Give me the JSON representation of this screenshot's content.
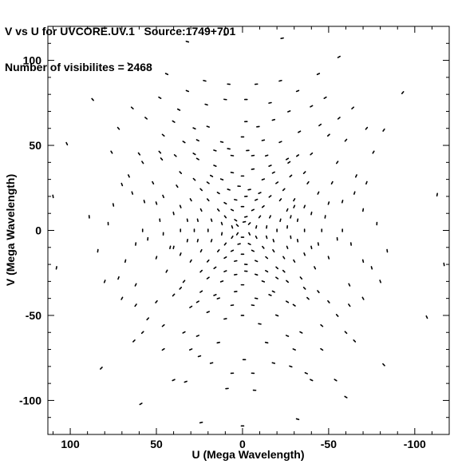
{
  "header": {
    "line1": "V vs U for UVCORE.UV.1   Source:1749+701",
    "line2": "Number of visibilites = 2468"
  },
  "chart_data": {
    "type": "scatter",
    "title": "V vs U for UVCORE.UV.1   Source:1749+701",
    "subtitle": "Number of visibilites = 2468",
    "xlabel": "U (Mega Wavelength)",
    "ylabel": "V (Mega Wavelength)",
    "xlim": [
      113,
      -120
    ],
    "ylim": [
      -120,
      120
    ],
    "x_reversed": true,
    "xticks": [
      100,
      50,
      0,
      -50,
      -100
    ],
    "xtick_labels": [
      "100",
      "50",
      "0",
      "-50",
      "-100"
    ],
    "yticks": [
      100,
      50,
      0,
      -50,
      -100
    ],
    "ytick_labels": [
      "100",
      "50",
      "0",
      "-50",
      "-100"
    ],
    "grid": false,
    "legend": "none",
    "marker_color": "#000000",
    "points": [
      [
        10,
        115
      ],
      [
        -23,
        113
      ],
      [
        32,
        111
      ],
      [
        -56,
        102
      ],
      [
        66,
        98
      ],
      [
        -93,
        81
      ],
      [
        87,
        77
      ],
      [
        -82,
        59
      ],
      [
        -113,
        21
      ],
      [
        102,
        51
      ],
      [
        110,
        20
      ],
      [
        89,
        8
      ],
      [
        -117,
        -20
      ],
      [
        108,
        -22
      ],
      [
        -107,
        -51
      ],
      [
        -82,
        -79
      ],
      [
        59,
        -102
      ],
      [
        -32,
        -111
      ],
      [
        24,
        -113
      ],
      [
        0,
        -115
      ],
      [
        82,
        -81
      ],
      [
        -60,
        -98
      ],
      [
        -54,
        -88
      ],
      [
        -37,
        -84
      ],
      [
        33,
        -89
      ],
      [
        9,
        -93
      ],
      [
        -7,
        -94
      ],
      [
        -1,
        -76
      ],
      [
        -28,
        -80
      ],
      [
        25,
        -74
      ],
      [
        -50,
        56
      ],
      [
        -45,
        62
      ],
      [
        -60,
        53
      ],
      [
        -40,
        73
      ],
      [
        -27,
        70
      ],
      [
        -16,
        75
      ],
      [
        -2,
        77
      ],
      [
        10,
        77
      ],
      [
        21,
        74
      ],
      [
        37,
        71
      ],
      [
        -18,
        65
      ],
      [
        -2,
        64
      ],
      [
        -9,
        61
      ],
      [
        20,
        61
      ],
      [
        28,
        60
      ],
      [
        40,
        64
      ],
      [
        46,
        56
      ],
      [
        -33,
        58
      ],
      [
        -40,
        45
      ],
      [
        -32,
        44
      ],
      [
        -27,
        40
      ],
      [
        -14,
        44
      ],
      [
        -3,
        47
      ],
      [
        8,
        48
      ],
      [
        16,
        47
      ],
      [
        28,
        45
      ],
      [
        39,
        44
      ],
      [
        47,
        42
      ],
      [
        58,
        40
      ],
      [
        -55,
        40
      ],
      [
        -22,
        52
      ],
      [
        -12,
        53
      ],
      [
        0,
        55
      ],
      [
        12,
        52
      ],
      [
        26,
        53
      ],
      [
        34,
        52
      ],
      [
        48,
        46
      ],
      [
        60,
        45
      ],
      [
        -66,
        32
      ],
      [
        -72,
        28
      ],
      [
        -65,
        22
      ],
      [
        -58,
        17
      ],
      [
        -70,
        12
      ],
      [
        66,
        32
      ],
      [
        70,
        27
      ],
      [
        64,
        22
      ],
      [
        57,
        17
      ],
      [
        75,
        15
      ],
      [
        -55,
        -5
      ],
      [
        -63,
        -8
      ],
      [
        -70,
        -18
      ],
      [
        -75,
        -22
      ],
      [
        55,
        -5
      ],
      [
        62,
        -8
      ],
      [
        68,
        -18
      ],
      [
        72,
        -28
      ],
      [
        -50,
        -42
      ],
      [
        -55,
        -50
      ],
      [
        -60,
        -60
      ],
      [
        -65,
        -65
      ],
      [
        50,
        -42
      ],
      [
        55,
        -52
      ],
      [
        58,
        -60
      ],
      [
        63,
        -65
      ],
      [
        -44,
        -36
      ],
      [
        -38,
        -40
      ],
      [
        -30,
        -44
      ],
      [
        -20,
        -50
      ],
      [
        -10,
        -55
      ],
      [
        0,
        -50
      ],
      [
        10,
        -52
      ],
      [
        20,
        -48
      ],
      [
        30,
        -45
      ],
      [
        40,
        -38
      ],
      [
        -42,
        -22
      ],
      [
        -34,
        -28
      ],
      [
        -26,
        -30
      ],
      [
        -18,
        -36
      ],
      [
        -8,
        -40
      ],
      [
        4,
        -36
      ],
      [
        14,
        -40
      ],
      [
        24,
        -36
      ],
      [
        34,
        -30
      ],
      [
        44,
        -24
      ],
      [
        -44,
        22
      ],
      [
        -38,
        28
      ],
      [
        -28,
        32
      ],
      [
        -18,
        34
      ],
      [
        -6,
        36
      ],
      [
        6,
        34
      ],
      [
        18,
        32
      ],
      [
        28,
        30
      ],
      [
        38,
        26
      ],
      [
        46,
        20
      ],
      [
        -48,
        8
      ],
      [
        -46,
        0
      ],
      [
        -44,
        -8
      ],
      [
        48,
        6
      ],
      [
        46,
        -2
      ],
      [
        42,
        -10
      ],
      [
        -36,
        14
      ],
      [
        -36,
        -14
      ],
      [
        36,
        14
      ],
      [
        36,
        -14
      ],
      [
        -52,
        28
      ],
      [
        52,
        28
      ],
      [
        -26,
        -62
      ],
      [
        26,
        -62
      ],
      [
        -14,
        -66
      ],
      [
        14,
        -66
      ],
      [
        -34,
        -60
      ],
      [
        34,
        -60
      ],
      [
        -46,
        -70
      ],
      [
        46,
        -70
      ],
      [
        -48,
        78
      ],
      [
        48,
        78
      ],
      [
        -22,
        88
      ],
      [
        22,
        88
      ],
      [
        -64,
        72
      ],
      [
        64,
        72
      ],
      [
        -30,
        14
      ],
      [
        -28,
        8
      ],
      [
        -26,
        2
      ],
      [
        -28,
        -4
      ],
      [
        -26,
        -10
      ],
      [
        -24,
        -16
      ],
      [
        -20,
        -22
      ],
      [
        -14,
        -24
      ],
      [
        -8,
        -26
      ],
      [
        -2,
        -24
      ],
      [
        4,
        -26
      ],
      [
        10,
        -24
      ],
      [
        16,
        -22
      ],
      [
        20,
        -18
      ],
      [
        24,
        -12
      ],
      [
        26,
        -6
      ],
      [
        28,
        0
      ],
      [
        26,
        6
      ],
      [
        24,
        12
      ],
      [
        20,
        18
      ],
      [
        14,
        22
      ],
      [
        8,
        24
      ],
      [
        2,
        26
      ],
      [
        -4,
        24
      ],
      [
        -10,
        22
      ],
      [
        -16,
        20
      ],
      [
        -22,
        18
      ],
      [
        -26,
        12
      ],
      [
        -22,
        6
      ],
      [
        -20,
        0
      ],
      [
        -18,
        -6
      ],
      [
        -18,
        -12
      ],
      [
        -14,
        -16
      ],
      [
        -8,
        -18
      ],
      [
        -2,
        -20
      ],
      [
        4,
        -18
      ],
      [
        10,
        -16
      ],
      [
        14,
        -12
      ],
      [
        18,
        -6
      ],
      [
        20,
        0
      ],
      [
        18,
        6
      ],
      [
        14,
        12
      ],
      [
        10,
        16
      ],
      [
        4,
        18
      ],
      [
        -2,
        20
      ],
      [
        -8,
        18
      ],
      [
        -12,
        14
      ],
      [
        -16,
        8
      ],
      [
        -14,
        2
      ],
      [
        -14,
        -4
      ],
      [
        -12,
        -10
      ],
      [
        -6,
        -12
      ],
      [
        0,
        -14
      ],
      [
        6,
        -12
      ],
      [
        10,
        -8
      ],
      [
        12,
        -2
      ],
      [
        12,
        4
      ],
      [
        10,
        8
      ],
      [
        6,
        12
      ],
      [
        0,
        14
      ],
      [
        -6,
        12
      ],
      [
        -10,
        8
      ],
      [
        -8,
        2
      ],
      [
        -8,
        -4
      ],
      [
        -4,
        -8
      ],
      [
        2,
        -8
      ],
      [
        6,
        -4
      ],
      [
        6,
        2
      ],
      [
        4,
        6
      ],
      [
        -2,
        8
      ],
      [
        -4,
        4
      ],
      [
        -4,
        -2
      ],
      [
        0,
        -4
      ],
      [
        3,
        -2
      ],
      [
        3,
        3
      ],
      [
        -1,
        5
      ],
      [
        -24,
        -24
      ],
      [
        24,
        -24
      ],
      [
        24,
        24
      ],
      [
        -24,
        24
      ],
      [
        -32,
        -6
      ],
      [
        32,
        -6
      ],
      [
        -32,
        6
      ],
      [
        32,
        6
      ],
      [
        -30,
        -18
      ],
      [
        30,
        -18
      ],
      [
        -30,
        18
      ],
      [
        30,
        18
      ],
      [
        -12,
        -30
      ],
      [
        12,
        -30
      ],
      [
        -12,
        30
      ],
      [
        12,
        30
      ],
      [
        0,
        -32
      ],
      [
        0,
        32
      ],
      [
        -20,
        -28
      ],
      [
        20,
        -28
      ],
      [
        -20,
        28
      ],
      [
        20,
        28
      ],
      [
        -36,
        0
      ],
      [
        36,
        0
      ],
      [
        -40,
        10
      ],
      [
        40,
        10
      ],
      [
        -40,
        -10
      ],
      [
        40,
        -10
      ],
      [
        -16,
        38
      ],
      [
        16,
        38
      ],
      [
        -16,
        -38
      ],
      [
        16,
        -38
      ],
      [
        -6,
        -44
      ],
      [
        6,
        -44
      ],
      [
        -6,
        44
      ],
      [
        6,
        44
      ],
      [
        -26,
        42
      ],
      [
        26,
        42
      ],
      [
        -26,
        -42
      ],
      [
        26,
        -42
      ],
      [
        -36,
        -34
      ],
      [
        36,
        -34
      ],
      [
        -36,
        34
      ],
      [
        36,
        34
      ],
      [
        -50,
        -16
      ],
      [
        50,
        -16
      ],
      [
        -50,
        16
      ],
      [
        50,
        16
      ],
      [
        -58,
        0
      ],
      [
        58,
        0
      ],
      [
        -62,
        -32
      ],
      [
        62,
        -32
      ],
      [
        -62,
        -44
      ],
      [
        62,
        -44
      ],
      [
        -46,
        -56
      ],
      [
        46,
        -56
      ],
      [
        -30,
        -70
      ],
      [
        30,
        -70
      ],
      [
        -18,
        -78
      ],
      [
        18,
        -78
      ],
      [
        -6,
        -84
      ],
      [
        6,
        -84
      ],
      [
        -40,
        -88
      ],
      [
        40,
        -88
      ],
      [
        -70,
        -40
      ],
      [
        70,
        -40
      ],
      [
        -80,
        -30
      ],
      [
        80,
        -30
      ],
      [
        -84,
        -12
      ],
      [
        84,
        -12
      ],
      [
        -78,
        4
      ],
      [
        78,
        4
      ],
      [
        -76,
        46
      ],
      [
        76,
        46
      ],
      [
        -56,
        66
      ],
      [
        56,
        66
      ],
      [
        -32,
        82
      ],
      [
        32,
        82
      ],
      [
        -8,
        86
      ],
      [
        8,
        86
      ],
      [
        -44,
        92
      ],
      [
        44,
        92
      ],
      [
        -72,
        60
      ],
      [
        72,
        60
      ]
    ]
  }
}
